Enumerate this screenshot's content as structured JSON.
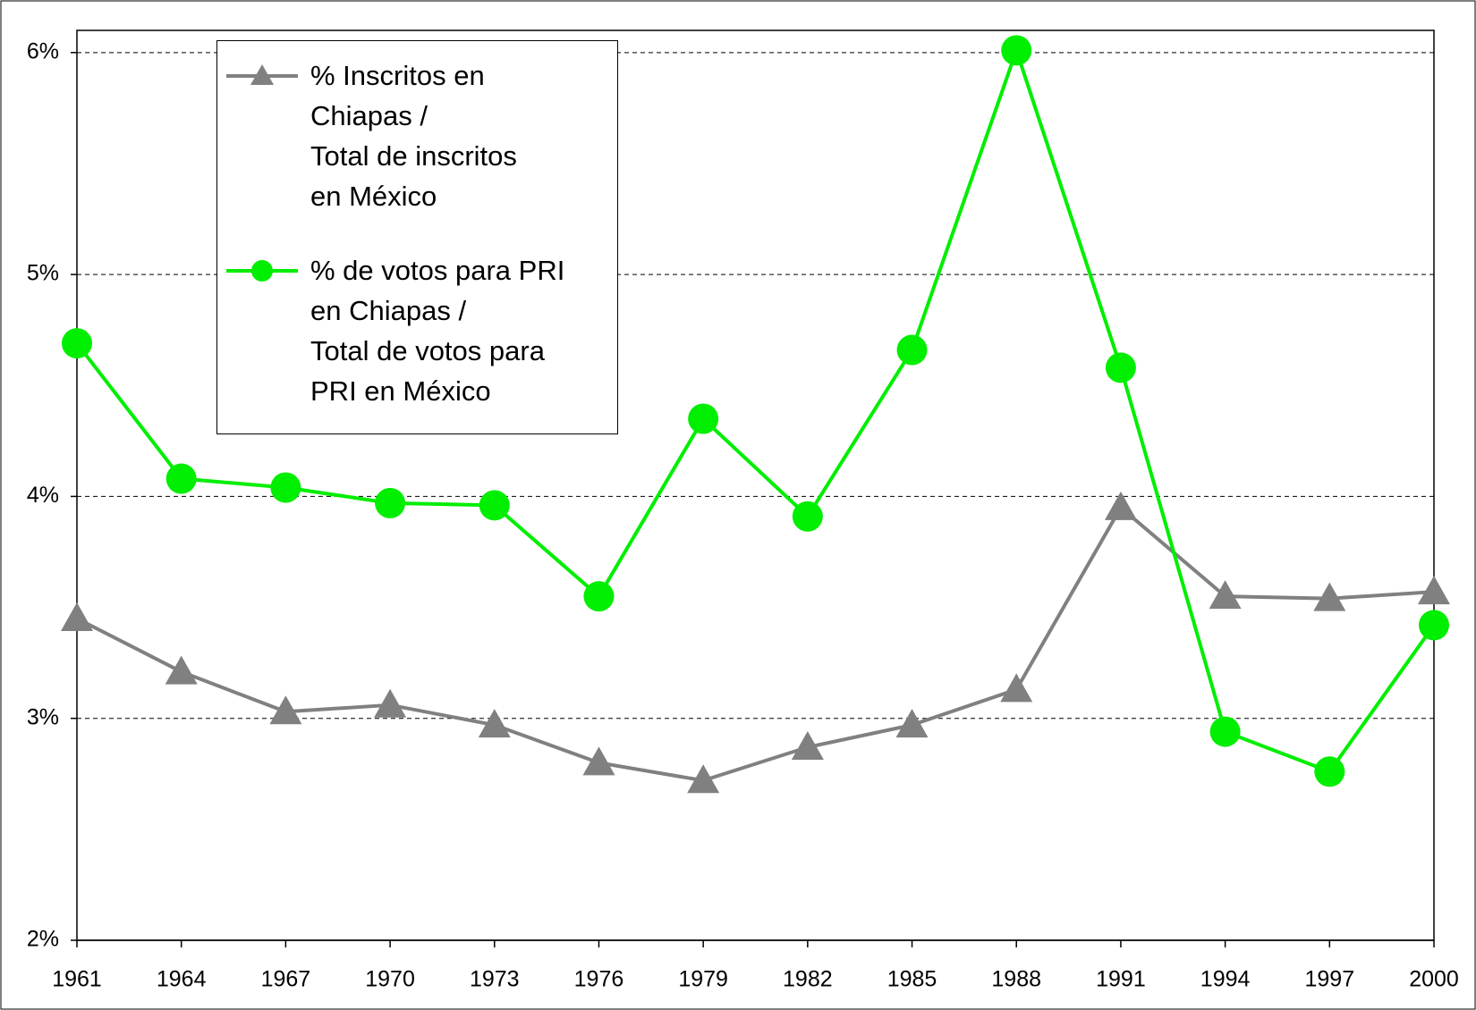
{
  "chart_data": {
    "type": "line",
    "categories": [
      "1961",
      "1964",
      "1967",
      "1970",
      "1973",
      "1976",
      "1979",
      "1982",
      "1985",
      "1988",
      "1991",
      "1994",
      "1997",
      "2000"
    ],
    "series": [
      {
        "name": "% Inscritos en\nChiapas /\nTotal  de inscritos\nen México",
        "color": "#808080",
        "marker": "triangle",
        "values": [
          3.45,
          3.21,
          3.03,
          3.06,
          2.97,
          2.8,
          2.72,
          2.87,
          2.97,
          3.13,
          3.95,
          3.55,
          3.54,
          3.57
        ]
      },
      {
        "name": "% de votos para PRI\nen Chiapas /\nTotal de votos para\nPRI en México",
        "color": "#00ee00",
        "marker": "circle",
        "values": [
          4.69,
          4.08,
          4.04,
          3.97,
          3.96,
          3.55,
          4.35,
          3.91,
          4.66,
          6.01,
          4.58,
          2.94,
          2.76,
          3.42
        ]
      }
    ],
    "ylim": [
      2,
      6.1
    ],
    "yticks": [
      {
        "value": 2,
        "label": "2%"
      },
      {
        "value": 3,
        "label": "3%"
      },
      {
        "value": 4,
        "label": "4%"
      },
      {
        "value": 5,
        "label": "5%"
      },
      {
        "value": 6,
        "label": "6%"
      }
    ],
    "grid": true
  }
}
